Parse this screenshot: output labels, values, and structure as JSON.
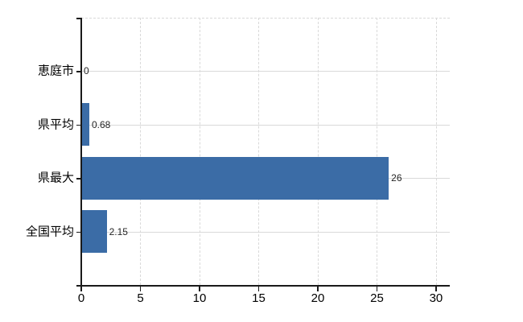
{
  "chart_data": {
    "type": "bar",
    "orientation": "horizontal",
    "title": "",
    "xlabel": "",
    "ylabel": "",
    "legend": "none",
    "categories": [
      "恵庭市",
      "県平均",
      "県最大",
      "全国平均"
    ],
    "values": [
      0,
      0.68,
      26,
      2.15
    ],
    "value_labels": [
      "0",
      "0.68",
      "26",
      "2.15"
    ],
    "x_ticks": [
      0,
      5,
      10,
      15,
      20,
      25,
      30
    ],
    "x_tick_labels": [
      "0",
      "5",
      "10",
      "15",
      "20",
      "25",
      "30"
    ],
    "xlim": [
      0,
      31.16
    ],
    "grid": {
      "vertical": "dashed",
      "horizontal": "solid-at-category-centers",
      "top_border": "dashed"
    },
    "colors": {
      "bar": "#3b6ca6",
      "gridline": "#d9d9d9",
      "axis": "#1a1a1a",
      "category_label": "#000000",
      "tick_label": "#000000",
      "value_label": "#262626",
      "background": "#ffffff"
    }
  }
}
